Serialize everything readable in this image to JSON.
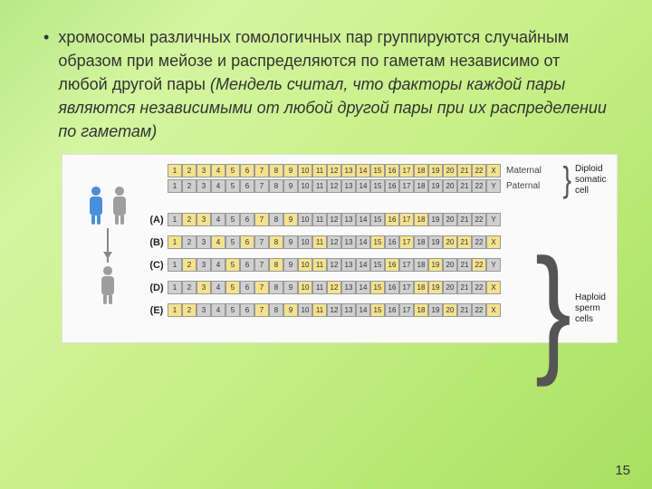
{
  "bullet_text": "хромосомы различных гомологичных пар группируются случайным образом при мейозе и распределяются по гаметам независимо от любой другой пары ",
  "bullet_italic": "(Мендель считал, что факторы каждой пары являются независимыми от любой другой пары при их распределении по гаметам)",
  "labels": {
    "maternal": "Maternal",
    "paternal": "Paternal",
    "diploid": "Diploid somatic cell",
    "haploid": "Haploid sperm cells"
  },
  "row_labels": [
    "(A)",
    "(B)",
    "(C)",
    "(D)",
    "(E)"
  ],
  "chromosomes": [
    "1",
    "2",
    "3",
    "4",
    "5",
    "6",
    "7",
    "8",
    "9",
    "10",
    "11",
    "12",
    "13",
    "14",
    "15",
    "16",
    "17",
    "18",
    "19",
    "20",
    "21",
    "22"
  ],
  "sex_chrom": {
    "X": "X",
    "Y": "Y"
  },
  "rows": {
    "maternal": {
      "sex": "X",
      "all": "mat"
    },
    "paternal": {
      "sex": "Y",
      "all": "pat"
    },
    "A": {
      "sex": "Y",
      "pattern": [
        "pat",
        "mat",
        "mat",
        "pat",
        "pat",
        "pat",
        "mat",
        "pat",
        "mat",
        "pat",
        "pat",
        "pat",
        "pat",
        "pat",
        "pat",
        "mat",
        "mat",
        "mat",
        "pat",
        "pat",
        "pat",
        "pat"
      ]
    },
    "B": {
      "sex": "X",
      "pattern": [
        "mat",
        "pat",
        "pat",
        "mat",
        "pat",
        "mat",
        "pat",
        "mat",
        "pat",
        "pat",
        "mat",
        "pat",
        "pat",
        "pat",
        "mat",
        "pat",
        "mat",
        "pat",
        "pat",
        "mat",
        "mat",
        "pat"
      ]
    },
    "C": {
      "sex": "Y",
      "pattern": [
        "pat",
        "mat",
        "pat",
        "pat",
        "mat",
        "pat",
        "pat",
        "mat",
        "pat",
        "mat",
        "mat",
        "pat",
        "pat",
        "pat",
        "pat",
        "mat",
        "pat",
        "pat",
        "mat",
        "pat",
        "pat",
        "mat"
      ]
    },
    "D": {
      "sex": "X",
      "pattern": [
        "pat",
        "pat",
        "mat",
        "pat",
        "mat",
        "pat",
        "mat",
        "pat",
        "pat",
        "mat",
        "pat",
        "mat",
        "pat",
        "pat",
        "mat",
        "pat",
        "pat",
        "mat",
        "mat",
        "pat",
        "pat",
        "pat"
      ]
    },
    "E": {
      "sex": "X",
      "pattern": [
        "mat",
        "mat",
        "pat",
        "pat",
        "pat",
        "pat",
        "mat",
        "pat",
        "mat",
        "pat",
        "mat",
        "pat",
        "pat",
        "pat",
        "mat",
        "pat",
        "pat",
        "mat",
        "pat",
        "mat",
        "pat",
        "pat"
      ]
    }
  },
  "colors": {
    "maternal": "#f4e28e",
    "paternal": "#d0d0d0",
    "border": "#999999",
    "text": "#333333",
    "bg": "#fafafa"
  },
  "page": "15"
}
